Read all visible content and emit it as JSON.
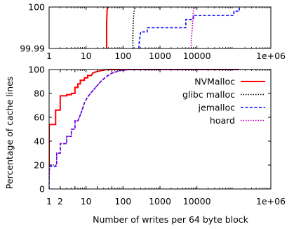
{
  "chart_data": [
    {
      "type": "line",
      "panel": "zoomed-top",
      "x_scale": "log",
      "xlim": [
        1,
        1000000
      ],
      "ylim": [
        99.99,
        100
      ],
      "x_ticks": [
        1,
        10,
        100,
        1000,
        10000,
        1000000
      ],
      "x_tick_labels": [
        "1",
        "10",
        "100",
        "1000",
        "10000",
        "1e+06"
      ],
      "y_ticks": [
        99.99,
        100
      ],
      "y_tick_labels": [
        "99.99",
        "100"
      ],
      "series": [
        {
          "name": "NVMalloc",
          "color": "#ff0000",
          "dash": "solid",
          "points": [
            [
              36,
              99.99
            ],
            [
              36,
              99.996
            ],
            [
              37,
              99.999
            ],
            [
              38,
              100
            ]
          ]
        },
        {
          "name": "glibc malloc",
          "color": "#000000",
          "dash": "dotted",
          "points": [
            [
              185,
              99.99
            ],
            [
              185,
              99.993
            ],
            [
              190,
              99.997
            ],
            [
              200,
              99.999
            ],
            [
              215,
              100
            ]
          ]
        },
        {
          "name": "jemalloc",
          "color": "#0000ff",
          "dash": "dashed",
          "points": [
            [
              270,
              99.99
            ],
            [
              270,
              99.991
            ],
            [
              300,
              99.994
            ],
            [
              450,
              99.994
            ],
            [
              450,
              99.995
            ],
            [
              1000,
              99.995
            ],
            [
              1000,
              99.995
            ],
            [
              5000,
              99.995
            ],
            [
              5000,
              99.997
            ],
            [
              8000,
              99.997
            ],
            [
              8000,
              99.998
            ],
            [
              9000,
              99.998
            ],
            [
              9000,
              99.998
            ],
            [
              100000,
              99.998
            ],
            [
              100000,
              99.999
            ],
            [
              140000,
              99.999
            ],
            [
              140000,
              100
            ]
          ]
        },
        {
          "name": "hoard",
          "color": "#cc00cc",
          "dash": "dotted",
          "points": [
            [
              7000,
              99.99
            ],
            [
              7000,
              99.992
            ],
            [
              7500,
              99.995
            ],
            [
              8000,
              99.999
            ],
            [
              8500,
              100
            ]
          ]
        }
      ]
    },
    {
      "type": "line",
      "panel": "main",
      "x_scale": "log",
      "xlim": [
        1,
        1000000
      ],
      "ylim": [
        0,
        100
      ],
      "xlabel": "Number of writes per 64 byte block",
      "ylabel": "Percentage of cache lines",
      "x_ticks": [
        1,
        2,
        5,
        10,
        20,
        50,
        100,
        1000,
        10000,
        1000000
      ],
      "x_tick_labels": [
        "1",
        "2",
        "5",
        "10",
        "20",
        "50",
        "100",
        "1000",
        "10000",
        "1e+06"
      ],
      "y_ticks": [
        0,
        20,
        40,
        60,
        80,
        100
      ],
      "y_tick_labels": [
        "0",
        "20",
        "40",
        "60",
        "80",
        "100"
      ],
      "legend_position": "center-right",
      "series": [
        {
          "name": "NVMalloc",
          "color": "#ff0000",
          "dash": "solid",
          "points": [
            [
              1,
              20
            ],
            [
              1,
              54
            ],
            [
              1.5,
              54
            ],
            [
              1.5,
              66
            ],
            [
              2,
              66
            ],
            [
              2,
              78
            ],
            [
              3,
              78
            ],
            [
              3,
              79
            ],
            [
              4,
              79
            ],
            [
              4,
              80
            ],
            [
              5,
              80
            ],
            [
              5,
              85
            ],
            [
              6,
              85
            ],
            [
              6,
              88
            ],
            [
              7,
              88
            ],
            [
              7,
              91
            ],
            [
              9,
              91
            ],
            [
              9,
              93
            ],
            [
              11,
              93
            ],
            [
              11,
              95
            ],
            [
              14,
              95
            ],
            [
              15,
              97
            ],
            [
              18,
              98
            ],
            [
              25,
              99
            ],
            [
              36,
              100
            ],
            [
              140000,
              100
            ]
          ]
        },
        {
          "name": "glibc malloc",
          "color": "#000000",
          "dash": "dotted",
          "points": [
            [
              1,
              10
            ],
            [
              1.05,
              20
            ],
            [
              1.6,
              20
            ],
            [
              1.6,
              30
            ],
            [
              2,
              30
            ],
            [
              2,
              38
            ],
            [
              3,
              38
            ],
            [
              3,
              44
            ],
            [
              4,
              44
            ],
            [
              4,
              50
            ],
            [
              5,
              50
            ],
            [
              5,
              57
            ],
            [
              6,
              57
            ],
            [
              7,
              62
            ],
            [
              8,
              67
            ],
            [
              9,
              72
            ],
            [
              11,
              77
            ],
            [
              14,
              81
            ],
            [
              18,
              85
            ],
            [
              25,
              90
            ],
            [
              35,
              94
            ],
            [
              50,
              97
            ],
            [
              80,
              99
            ],
            [
              150,
              100
            ],
            [
              1000000,
              100
            ]
          ]
        },
        {
          "name": "jemalloc",
          "color": "#0000ff",
          "dash": "dashed",
          "points": [
            [
              1,
              0
            ],
            [
              1,
              19
            ],
            [
              1.6,
              19
            ],
            [
              1.6,
              30
            ],
            [
              2,
              30
            ],
            [
              2,
              38
            ],
            [
              3,
              38
            ],
            [
              3,
              44
            ],
            [
              4,
              44
            ],
            [
              4,
              50
            ],
            [
              5,
              50
            ],
            [
              5,
              57
            ],
            [
              6,
              57
            ],
            [
              7,
              62
            ],
            [
              8,
              67
            ],
            [
              9,
              72
            ],
            [
              11,
              77
            ],
            [
              14,
              81
            ],
            [
              18,
              85
            ],
            [
              25,
              90
            ],
            [
              35,
              94
            ],
            [
              50,
              97
            ],
            [
              80,
              99
            ],
            [
              150,
              100
            ],
            [
              140000,
              100
            ]
          ]
        },
        {
          "name": "hoard",
          "color": "#cc00cc",
          "dash": "dotted",
          "points": [
            [
              1,
              10
            ],
            [
              1.05,
              20
            ],
            [
              1.6,
              20
            ],
            [
              1.6,
              30
            ],
            [
              2,
              30
            ],
            [
              2,
              38
            ],
            [
              3,
              38
            ],
            [
              3,
              44
            ],
            [
              4,
              44
            ],
            [
              4,
              50
            ],
            [
              5,
              50
            ],
            [
              5,
              57
            ],
            [
              6,
              57
            ],
            [
              7,
              62
            ],
            [
              8,
              67
            ],
            [
              9,
              72
            ],
            [
              11,
              77
            ],
            [
              14,
              81
            ],
            [
              18,
              85
            ],
            [
              25,
              90
            ],
            [
              35,
              94
            ],
            [
              50,
              97
            ],
            [
              80,
              99
            ],
            [
              150,
              100
            ],
            [
              8500,
              100
            ]
          ]
        }
      ]
    }
  ]
}
